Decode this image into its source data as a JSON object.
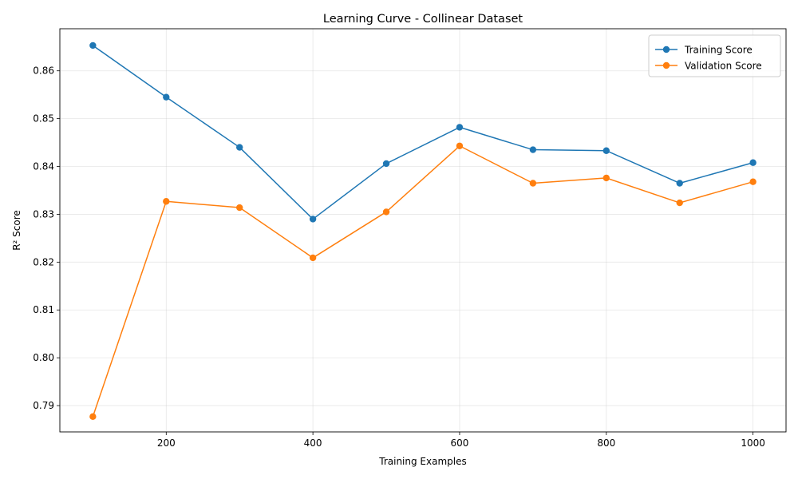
{
  "chart_data": {
    "type": "line",
    "title": "Learning Curve - Collinear Dataset",
    "xlabel": "Training Examples",
    "ylabel": "R² Score",
    "x": [
      100,
      200,
      300,
      400,
      500,
      600,
      700,
      800,
      900,
      1000
    ],
    "xlim": [
      55,
      1045
    ],
    "ylim": [
      0.7845,
      0.8688
    ],
    "xticks": [
      200,
      400,
      600,
      800,
      1000
    ],
    "yticks": [
      0.79,
      0.8,
      0.81,
      0.82,
      0.83,
      0.84,
      0.85,
      0.86
    ],
    "ytick_labels": [
      "0.79",
      "0.80",
      "0.81",
      "0.82",
      "0.83",
      "0.84",
      "0.85",
      "0.86"
    ],
    "grid": true,
    "legend_position": "top-right",
    "series": [
      {
        "name": "Training Score",
        "color": "#1f77b4",
        "marker": "circle",
        "values": [
          0.8653,
          0.8545,
          0.844,
          0.829,
          0.8406,
          0.8482,
          0.8435,
          0.8433,
          0.8365,
          0.8408
        ]
      },
      {
        "name": "Validation Score",
        "color": "#ff7f0e",
        "marker": "circle",
        "values": [
          0.7877,
          0.8327,
          0.8314,
          0.8209,
          0.8305,
          0.8443,
          0.8365,
          0.8376,
          0.8324,
          0.8368
        ]
      }
    ]
  }
}
